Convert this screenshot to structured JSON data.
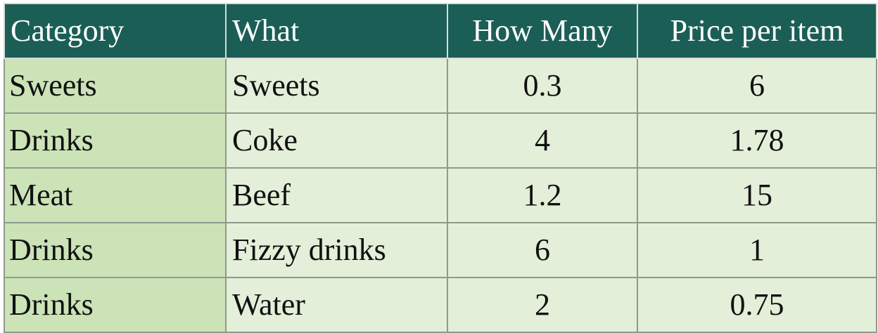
{
  "table": {
    "headers": [
      "Category",
      "What",
      "How Many",
      "Price per item"
    ],
    "rows": [
      [
        "Sweets",
        "Sweets",
        "0.3",
        "6"
      ],
      [
        "Drinks",
        "Coke",
        "4",
        "1.78"
      ],
      [
        "Meat",
        "Beef",
        "1.2",
        "15"
      ],
      [
        "Drinks",
        "Fizzy drinks",
        "6",
        "1"
      ],
      [
        "Drinks",
        "Water",
        "2",
        "0.75"
      ]
    ]
  },
  "colors": {
    "header_bg": "#1b5e56",
    "header_text": "#ffffff",
    "category_bg": "#cbe3b7",
    "cell_bg": "#e3efd8"
  }
}
